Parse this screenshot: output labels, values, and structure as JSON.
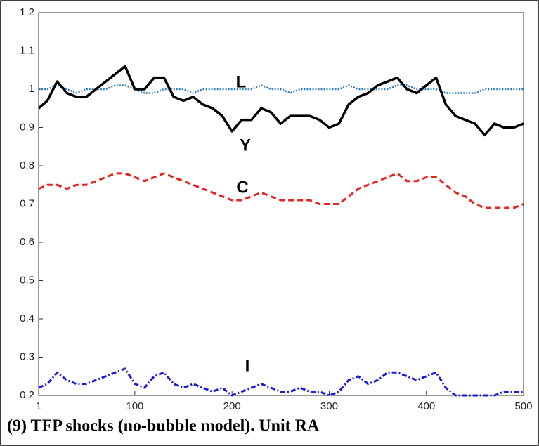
{
  "chart_data": {
    "type": "line",
    "caption": "(9) TFP shocks (no-bubble model). Unit RA",
    "annotations": [
      "L",
      "Y",
      "C",
      "I"
    ],
    "x": [
      1,
      10,
      20,
      30,
      40,
      50,
      60,
      70,
      80,
      90,
      100,
      110,
      120,
      130,
      140,
      150,
      160,
      170,
      180,
      190,
      200,
      210,
      220,
      230,
      240,
      250,
      260,
      270,
      280,
      290,
      300,
      310,
      320,
      330,
      340,
      350,
      360,
      370,
      380,
      390,
      400,
      410,
      420,
      430,
      440,
      450,
      460,
      470,
      480,
      490,
      500
    ],
    "series": [
      {
        "name": "L",
        "color": "#2a7dc4",
        "linestyle": "dotted",
        "values": [
          1.0,
          1.0,
          1.01,
          1.0,
          0.99,
          1.0,
          1.0,
          1.0,
          1.01,
          1.01,
          1.0,
          0.99,
          0.99,
          1.0,
          1.0,
          1.0,
          0.99,
          1.0,
          1.0,
          1.0,
          1.0,
          1.0,
          1.0,
          1.01,
          1.0,
          1.0,
          0.99,
          1.0,
          1.0,
          1.0,
          1.0,
          1.0,
          1.01,
          1.0,
          1.0,
          1.0,
          1.0,
          1.01,
          1.01,
          1.0,
          1.0,
          1.0,
          0.99,
          0.99,
          0.99,
          0.99,
          1.0,
          1.0,
          1.0,
          1.0,
          1.0
        ]
      },
      {
        "name": "Y",
        "color": "#000000",
        "linestyle": "solid",
        "values": [
          0.95,
          0.97,
          1.02,
          0.99,
          0.98,
          0.98,
          1.0,
          1.02,
          1.04,
          1.06,
          1.0,
          1.0,
          1.03,
          1.03,
          0.98,
          0.97,
          0.98,
          0.96,
          0.95,
          0.93,
          0.89,
          0.92,
          0.92,
          0.95,
          0.94,
          0.91,
          0.93,
          0.93,
          0.93,
          0.92,
          0.9,
          0.91,
          0.96,
          0.98,
          0.99,
          1.01,
          1.02,
          1.03,
          1.0,
          0.99,
          1.01,
          1.03,
          0.96,
          0.93,
          0.92,
          0.91,
          0.88,
          0.91,
          0.9,
          0.9,
          0.91
        ]
      },
      {
        "name": "C",
        "color": "#e8211d",
        "linestyle": "dashed",
        "values": [
          0.74,
          0.75,
          0.75,
          0.74,
          0.75,
          0.75,
          0.76,
          0.77,
          0.78,
          0.78,
          0.77,
          0.76,
          0.77,
          0.78,
          0.77,
          0.76,
          0.75,
          0.74,
          0.73,
          0.72,
          0.71,
          0.71,
          0.72,
          0.73,
          0.72,
          0.71,
          0.71,
          0.71,
          0.71,
          0.7,
          0.7,
          0.7,
          0.72,
          0.74,
          0.75,
          0.76,
          0.77,
          0.78,
          0.76,
          0.76,
          0.77,
          0.77,
          0.75,
          0.73,
          0.72,
          0.7,
          0.69,
          0.69,
          0.69,
          0.69,
          0.7
        ]
      },
      {
        "name": "I",
        "color": "#1a1adf",
        "linestyle": "dashdot",
        "values": [
          0.22,
          0.23,
          0.26,
          0.24,
          0.23,
          0.23,
          0.24,
          0.25,
          0.26,
          0.27,
          0.23,
          0.22,
          0.25,
          0.26,
          0.23,
          0.22,
          0.23,
          0.22,
          0.21,
          0.22,
          0.2,
          0.21,
          0.22,
          0.23,
          0.22,
          0.21,
          0.21,
          0.22,
          0.21,
          0.21,
          0.2,
          0.21,
          0.24,
          0.25,
          0.23,
          0.24,
          0.26,
          0.26,
          0.25,
          0.24,
          0.25,
          0.26,
          0.22,
          0.2,
          0.2,
          0.2,
          0.2,
          0.2,
          0.21,
          0.21,
          0.21
        ]
      }
    ],
    "xlim": [
      1,
      500
    ],
    "xticks": [
      1,
      100,
      200,
      300,
      400,
      500
    ],
    "ylim": [
      0.2,
      1.2
    ],
    "yticks": [
      0.2,
      0.3,
      0.4,
      0.5,
      0.6,
      0.7,
      0.8,
      0.9,
      1,
      1.1,
      1.2
    ],
    "grid": false
  }
}
